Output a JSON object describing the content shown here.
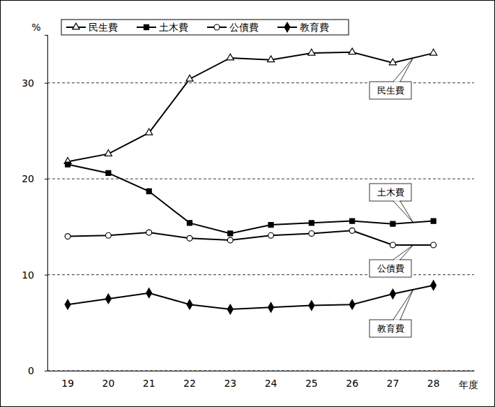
{
  "chart_data": {
    "type": "line",
    "y_label": "%",
    "x_label": "年度",
    "categories": [
      "19",
      "20",
      "21",
      "22",
      "23",
      "24",
      "25",
      "26",
      "27",
      "28"
    ],
    "series": [
      {
        "name": "民生費",
        "color": "#000000",
        "marker": "open-triangle",
        "line_style": "solid",
        "values": [
          21.8,
          22.6,
          24.8,
          30.4,
          32.6,
          32.4,
          33.1,
          33.2,
          32.1,
          33.1
        ]
      },
      {
        "name": "土木費",
        "color": "#000000",
        "marker": "filled-square",
        "line_style": "solid",
        "values": [
          21.5,
          20.6,
          18.7,
          15.4,
          14.3,
          15.2,
          15.4,
          15.6,
          15.3,
          15.6
        ]
      },
      {
        "name": "公債費",
        "color": "#000000",
        "marker": "open-circle",
        "line_style": "solid",
        "values": [
          14.0,
          14.1,
          14.4,
          13.8,
          13.6,
          14.1,
          14.3,
          14.6,
          13.1,
          13.1
        ]
      },
      {
        "name": "教育費",
        "color": "#000000",
        "marker": "filled-diamond",
        "line_style": "solid",
        "values": [
          6.9,
          7.5,
          8.1,
          6.9,
          6.4,
          6.6,
          6.8,
          6.9,
          8.0,
          8.9
        ]
      }
    ],
    "ylim": [
      0,
      35
    ],
    "yticks": [
      0,
      10,
      20,
      30
    ],
    "grid": true,
    "legend": "top-left"
  }
}
